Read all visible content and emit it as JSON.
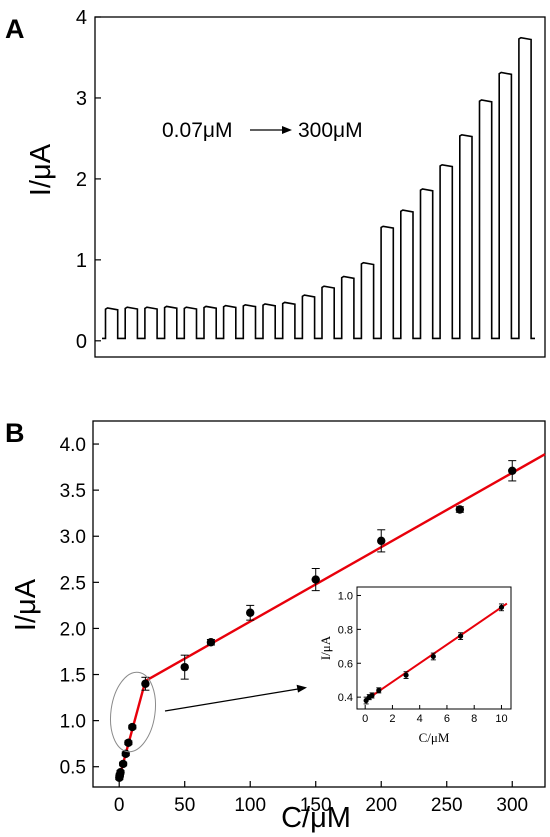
{
  "chart_data": [
    {
      "panel_label": "A",
      "type": "line",
      "ylabel": "I/μA",
      "annotation": {
        "start": "0.07μM",
        "end": "300μM"
      },
      "ylim": [
        -0.2,
        4.0
      ],
      "yticks": [
        "0",
        "1",
        "2",
        "3",
        "4"
      ],
      "ytick_values": [
        0,
        1,
        2,
        3,
        4
      ],
      "pulse_count": 22,
      "baseline": 0.03,
      "pulse_heights": [
        0.39,
        0.4,
        0.4,
        0.41,
        0.4,
        0.41,
        0.42,
        0.43,
        0.44,
        0.46,
        0.55,
        0.66,
        0.78,
        0.95,
        1.4,
        1.6,
        1.86,
        2.16,
        2.53,
        2.96,
        3.3,
        3.73
      ]
    },
    {
      "panel_label": "B",
      "type": "scatter",
      "xlabel": "C/μM",
      "ylabel": "I/μA",
      "xlim": [
        -20,
        325
      ],
      "ylim": [
        0.28,
        4.25
      ],
      "xticks": [
        "0",
        "50",
        "100",
        "150",
        "200",
        "250",
        "300"
      ],
      "xtick_values": [
        0,
        50,
        100,
        150,
        200,
        250,
        300
      ],
      "yticks": [
        "0.5",
        "1.0",
        "1.5",
        "2.0",
        "2.5",
        "3.0",
        "3.5",
        "4.0"
      ],
      "ytick_values": [
        0.5,
        1.0,
        1.5,
        2.0,
        2.5,
        3.0,
        3.5,
        4.0
      ],
      "points": [
        {
          "x": 0.07,
          "y": 0.38,
          "err": 0.02
        },
        {
          "x": 0.3,
          "y": 0.4,
          "err": 0.02
        },
        {
          "x": 0.5,
          "y": 0.41,
          "err": 0.02
        },
        {
          "x": 1,
          "y": 0.44,
          "err": 0.02
        },
        {
          "x": 3,
          "y": 0.53,
          "err": 0.02
        },
        {
          "x": 5,
          "y": 0.64,
          "err": 0.02
        },
        {
          "x": 7,
          "y": 0.76,
          "err": 0.02
        },
        {
          "x": 10,
          "y": 0.93,
          "err": 0.02
        },
        {
          "x": 20,
          "y": 1.4,
          "err": 0.07
        },
        {
          "x": 50,
          "y": 1.58,
          "err": 0.13
        },
        {
          "x": 70,
          "y": 1.85,
          "err": 0.03
        },
        {
          "x": 100,
          "y": 2.17,
          "err": 0.08
        },
        {
          "x": 150,
          "y": 2.53,
          "err": 0.12
        },
        {
          "x": 200,
          "y": 2.95,
          "err": 0.12
        },
        {
          "x": 260,
          "y": 3.29,
          "err": 0.03
        },
        {
          "x": 300,
          "y": 3.71,
          "err": 0.11
        }
      ],
      "fit_segments": [
        {
          "x": [
            0,
            20
          ],
          "y": [
            0.38,
            1.43
          ]
        },
        {
          "x": [
            20,
            325
          ],
          "y": [
            1.43,
            3.89
          ]
        }
      ],
      "fit_color": "#e8000b",
      "inset": {
        "type": "scatter",
        "xlabel": "C/μM",
        "ylabel": "I/μA",
        "xlim": [
          -0.6,
          10.7
        ],
        "ylim": [
          0.33,
          1.05
        ],
        "xticks": [
          "0",
          "2",
          "4",
          "6",
          "8",
          "10"
        ],
        "xtick_values": [
          0,
          2,
          4,
          6,
          8,
          10
        ],
        "yticks": [
          "0.4",
          "0.6",
          "0.8",
          "1.0"
        ],
        "ytick_values": [
          0.4,
          0.6,
          0.8,
          1.0
        ],
        "points": [
          {
            "x": 0.07,
            "y": 0.38,
            "err": 0.02
          },
          {
            "x": 0.3,
            "y": 0.4,
            "err": 0.015
          },
          {
            "x": 0.5,
            "y": 0.41,
            "err": 0.015
          },
          {
            "x": 1,
            "y": 0.44,
            "err": 0.015
          },
          {
            "x": 3,
            "y": 0.53,
            "err": 0.02
          },
          {
            "x": 5,
            "y": 0.64,
            "err": 0.02
          },
          {
            "x": 7,
            "y": 0.76,
            "err": 0.02
          },
          {
            "x": 10,
            "y": 0.93,
            "err": 0.02
          }
        ],
        "fit": {
          "x": [
            0,
            10.4
          ],
          "y": [
            0.38,
            0.952
          ]
        }
      }
    }
  ]
}
